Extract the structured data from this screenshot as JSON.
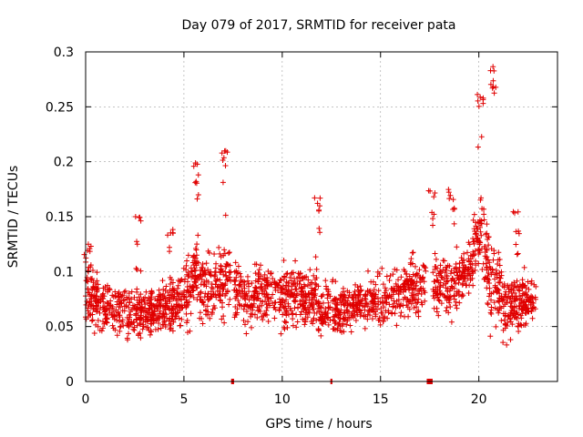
{
  "chart_data": {
    "type": "scatter",
    "title": "Day 079 of 2017, SRMTID for receiver pata",
    "xlabel": "GPS time / hours",
    "ylabel": "SRMTID / TECUs",
    "xlim": [
      0,
      24
    ],
    "ylim": [
      0,
      0.3
    ],
    "x_ticks": [
      0,
      5,
      10,
      15,
      20
    ],
    "x_tick_labels": [
      "0",
      "5",
      "10",
      "15",
      "20"
    ],
    "y_ticks": [
      0,
      0.05,
      0.1,
      0.15,
      0.2,
      0.25,
      0.3
    ],
    "y_tick_labels": [
      "0",
      "0.05",
      "0.1",
      "0.15",
      "0.2",
      "0.25",
      "0.3"
    ],
    "grid": true,
    "marker": "+",
    "color": "#e00000",
    "series": [
      {
        "name": "SRMTID",
        "x_range": [
          0,
          22.9
        ],
        "profile": [
          [
            0.0,
            0.085,
            0.025
          ],
          [
            1.0,
            0.068,
            0.02
          ],
          [
            2.5,
            0.063,
            0.02
          ],
          [
            4.0,
            0.064,
            0.02
          ],
          [
            5.0,
            0.075,
            0.025
          ],
          [
            5.6,
            0.095,
            0.03
          ],
          [
            6.5,
            0.085,
            0.028
          ],
          [
            7.2,
            0.095,
            0.03
          ],
          [
            8.0,
            0.078,
            0.022
          ],
          [
            9.5,
            0.08,
            0.025
          ],
          [
            11.0,
            0.075,
            0.025
          ],
          [
            12.5,
            0.065,
            0.02
          ],
          [
            14.0,
            0.07,
            0.02
          ],
          [
            16.0,
            0.08,
            0.022
          ],
          [
            17.3,
            0.09,
            0.025
          ],
          [
            18.5,
            0.085,
            0.025
          ],
          [
            19.5,
            0.1,
            0.02
          ],
          [
            20.1,
            0.14,
            0.03
          ],
          [
            20.6,
            0.09,
            0.04
          ],
          [
            21.3,
            0.07,
            0.03
          ],
          [
            22.2,
            0.07,
            0.022
          ],
          [
            22.9,
            0.075,
            0.015
          ]
        ],
        "peaks": [
          {
            "x": 0.1,
            "y": 0.125
          },
          {
            "x": 2.7,
            "y": 0.15
          },
          {
            "x": 4.3,
            "y": 0.14
          },
          {
            "x": 5.6,
            "y": 0.2
          },
          {
            "x": 7.1,
            "y": 0.21
          },
          {
            "x": 11.8,
            "y": 0.168
          },
          {
            "x": 17.6,
            "y": 0.175
          },
          {
            "x": 18.6,
            "y": 0.175
          },
          {
            "x": 20.1,
            "y": 0.262
          },
          {
            "x": 20.7,
            "y": 0.288
          },
          {
            "x": 21.9,
            "y": 0.155
          }
        ]
      }
    ],
    "data_gaps_hours": [
      {
        "start": 7.4,
        "end": 7.55
      },
      {
        "start": 12.45,
        "end": 12.55
      },
      {
        "start": 17.35,
        "end": 17.65
      }
    ]
  }
}
